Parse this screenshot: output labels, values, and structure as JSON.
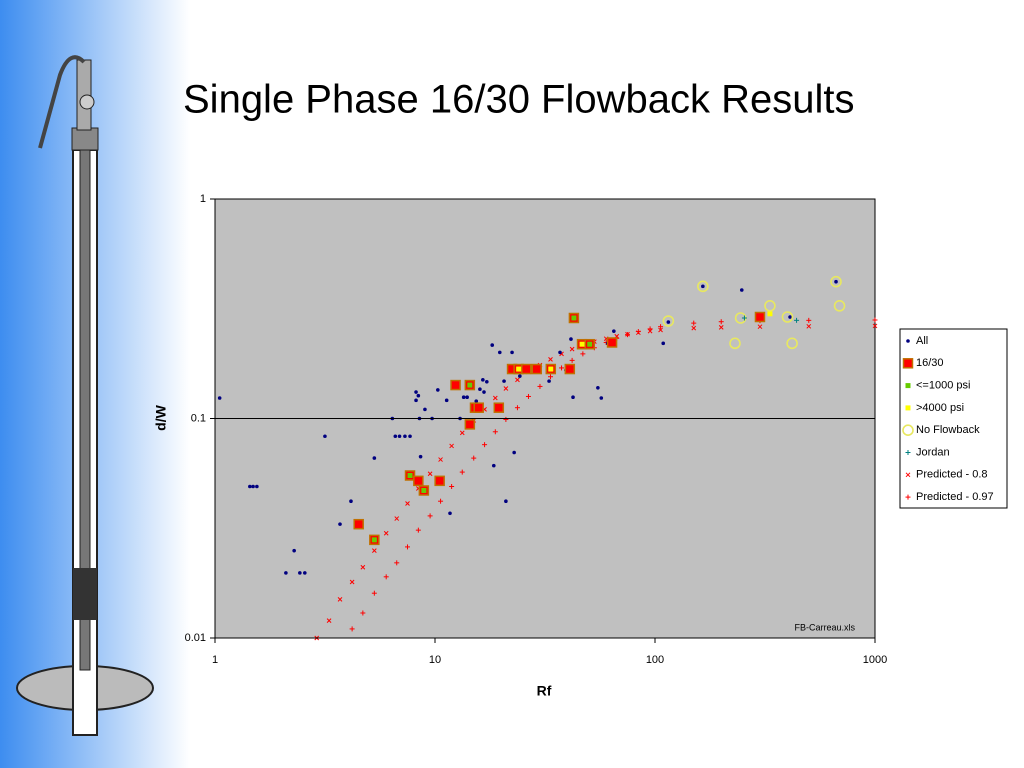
{
  "chart_data": {
    "type": "scatter",
    "title": "Single Phase 16/30 Flowback Results",
    "xlabel": "Rf",
    "ylabel": "d/W",
    "annotation": "FB-Carreau.xls",
    "xscale": "log",
    "yscale": "log",
    "xlim": [
      1,
      1000
    ],
    "ylim": [
      0.01,
      1
    ],
    "xticks": [
      1,
      10,
      100,
      1000
    ],
    "yticks": [
      0.01,
      0.1,
      1
    ],
    "grid": true,
    "legend": "right",
    "series": [
      {
        "name": "All",
        "color": "#000080",
        "marker": "dot",
        "x": [
          1.05,
          1.44,
          1.49,
          1.55,
          2.1,
          2.29,
          2.43,
          2.56,
          3.16,
          3.7,
          4.15,
          5.3,
          6.4,
          6.6,
          6.9,
          7.3,
          7.7,
          8.2,
          8.2,
          8.4,
          8.5,
          8.6,
          9.0,
          9.7,
          10.3,
          11.3,
          11.7,
          13,
          13.5,
          14,
          15.4,
          16,
          16.5,
          16.7,
          17.2,
          18.2,
          18.5,
          19.7,
          20.6,
          21,
          21.7,
          22.4,
          22.9,
          24.3,
          33,
          37,
          39.4,
          41.5,
          42.4,
          55,
          57,
          61,
          65,
          109,
          115,
          165,
          248,
          411,
          665
        ],
        "values": [
          0.124,
          0.049,
          0.049,
          0.049,
          0.0198,
          0.025,
          0.0198,
          0.0198,
          0.083,
          0.033,
          0.042,
          0.066,
          0.1,
          0.083,
          0.083,
          0.083,
          0.083,
          0.132,
          0.121,
          0.127,
          0.1,
          0.067,
          0.11,
          0.1,
          0.135,
          0.121,
          0.037,
          0.1,
          0.125,
          0.125,
          0.12,
          0.136,
          0.15,
          0.132,
          0.147,
          0.216,
          0.061,
          0.2,
          0.148,
          0.042,
          0.165,
          0.2,
          0.07,
          0.156,
          0.148,
          0.2,
          0.166,
          0.23,
          0.125,
          0.138,
          0.124,
          0.22,
          0.25,
          0.22,
          0.275,
          0.4,
          0.385,
          0.29,
          0.42
        ]
      },
      {
        "name": "16/30",
        "color": "#ff0000",
        "marker": "square",
        "x": [
          4.5,
          5.3,
          7.7,
          8.4,
          8.9,
          10.5,
          12.4,
          14.4,
          14.4,
          15.2,
          15.8,
          19.5,
          22.4,
          24,
          26,
          29,
          33.6,
          41,
          42.8,
          46.6,
          50.5,
          63.8,
          300
        ],
        "values": [
          0.033,
          0.028,
          0.055,
          0.052,
          0.047,
          0.052,
          0.142,
          0.142,
          0.094,
          0.112,
          0.112,
          0.112,
          0.168,
          0.168,
          0.168,
          0.168,
          0.168,
          0.168,
          0.287,
          0.218,
          0.218,
          0.222,
          0.29
        ]
      },
      {
        "name": "<=1000 psi",
        "color": "#66cc00",
        "marker": "smallsquare",
        "x": [
          5.3,
          7.7,
          8.9,
          14.4,
          42.8,
          50.5
        ],
        "values": [
          0.028,
          0.055,
          0.047,
          0.142,
          0.287,
          0.218
        ]
      },
      {
        "name": ">4000 psi",
        "color": "#ffff00",
        "marker": "smallsquare",
        "x": [
          24,
          33.6,
          46.6,
          333
        ],
        "values": [
          0.168,
          0.168,
          0.218,
          0.3
        ]
      },
      {
        "name": "No Flowback",
        "color": "#e8e860",
        "marker": "circle",
        "x": [
          115,
          165,
          231,
          245,
          333,
          400,
          420,
          665,
          690
        ],
        "values": [
          0.278,
          0.4,
          0.22,
          0.287,
          0.326,
          0.29,
          0.22,
          0.42,
          0.326
        ]
      },
      {
        "name": "Jordan",
        "color": "#008080",
        "marker": "plus",
        "x": [
          255,
          440
        ],
        "values": [
          0.287,
          0.28
        ]
      },
      {
        "name": "Predicted - 0.8",
        "color": "#ff0000",
        "marker": "x",
        "x": [
          2.9,
          3.3,
          3.7,
          4.2,
          4.7,
          5.3,
          6.0,
          6.7,
          7.5,
          8.4,
          9.5,
          10.6,
          11.9,
          13.3,
          15,
          16.8,
          18.8,
          21,
          23.7,
          26.6,
          30,
          33.5,
          37.6,
          42,
          47,
          53,
          60,
          67,
          75,
          84,
          95,
          106,
          150,
          200,
          300,
          500,
          1000
        ],
        "values": [
          0.01,
          0.012,
          0.015,
          0.018,
          0.021,
          0.025,
          0.03,
          0.035,
          0.041,
          0.048,
          0.056,
          0.065,
          0.075,
          0.086,
          0.098,
          0.11,
          0.124,
          0.137,
          0.15,
          0.163,
          0.175,
          0.186,
          0.197,
          0.207,
          0.216,
          0.224,
          0.231,
          0.237,
          0.242,
          0.246,
          0.25,
          0.253,
          0.258,
          0.26,
          0.262,
          0.263,
          0.264
        ]
      },
      {
        "name": "Predicted - 0.97",
        "color": "#ff0000",
        "marker": "plus",
        "x": [
          4.2,
          4.7,
          5.3,
          6.0,
          6.7,
          7.5,
          8.4,
          9.5,
          10.6,
          11.9,
          13.3,
          15,
          16.8,
          18.8,
          21,
          23.7,
          26.6,
          30,
          33.5,
          37.6,
          42,
          47,
          53,
          60,
          67,
          75,
          84,
          95,
          106,
          150,
          200,
          300,
          500,
          1000
        ],
        "values": [
          0.011,
          0.013,
          0.016,
          0.019,
          0.022,
          0.026,
          0.031,
          0.036,
          0.042,
          0.049,
          0.057,
          0.066,
          0.076,
          0.087,
          0.099,
          0.112,
          0.126,
          0.14,
          0.155,
          0.17,
          0.184,
          0.197,
          0.21,
          0.222,
          0.232,
          0.241,
          0.249,
          0.256,
          0.262,
          0.272,
          0.276,
          0.279,
          0.28,
          0.281
        ]
      }
    ]
  }
}
